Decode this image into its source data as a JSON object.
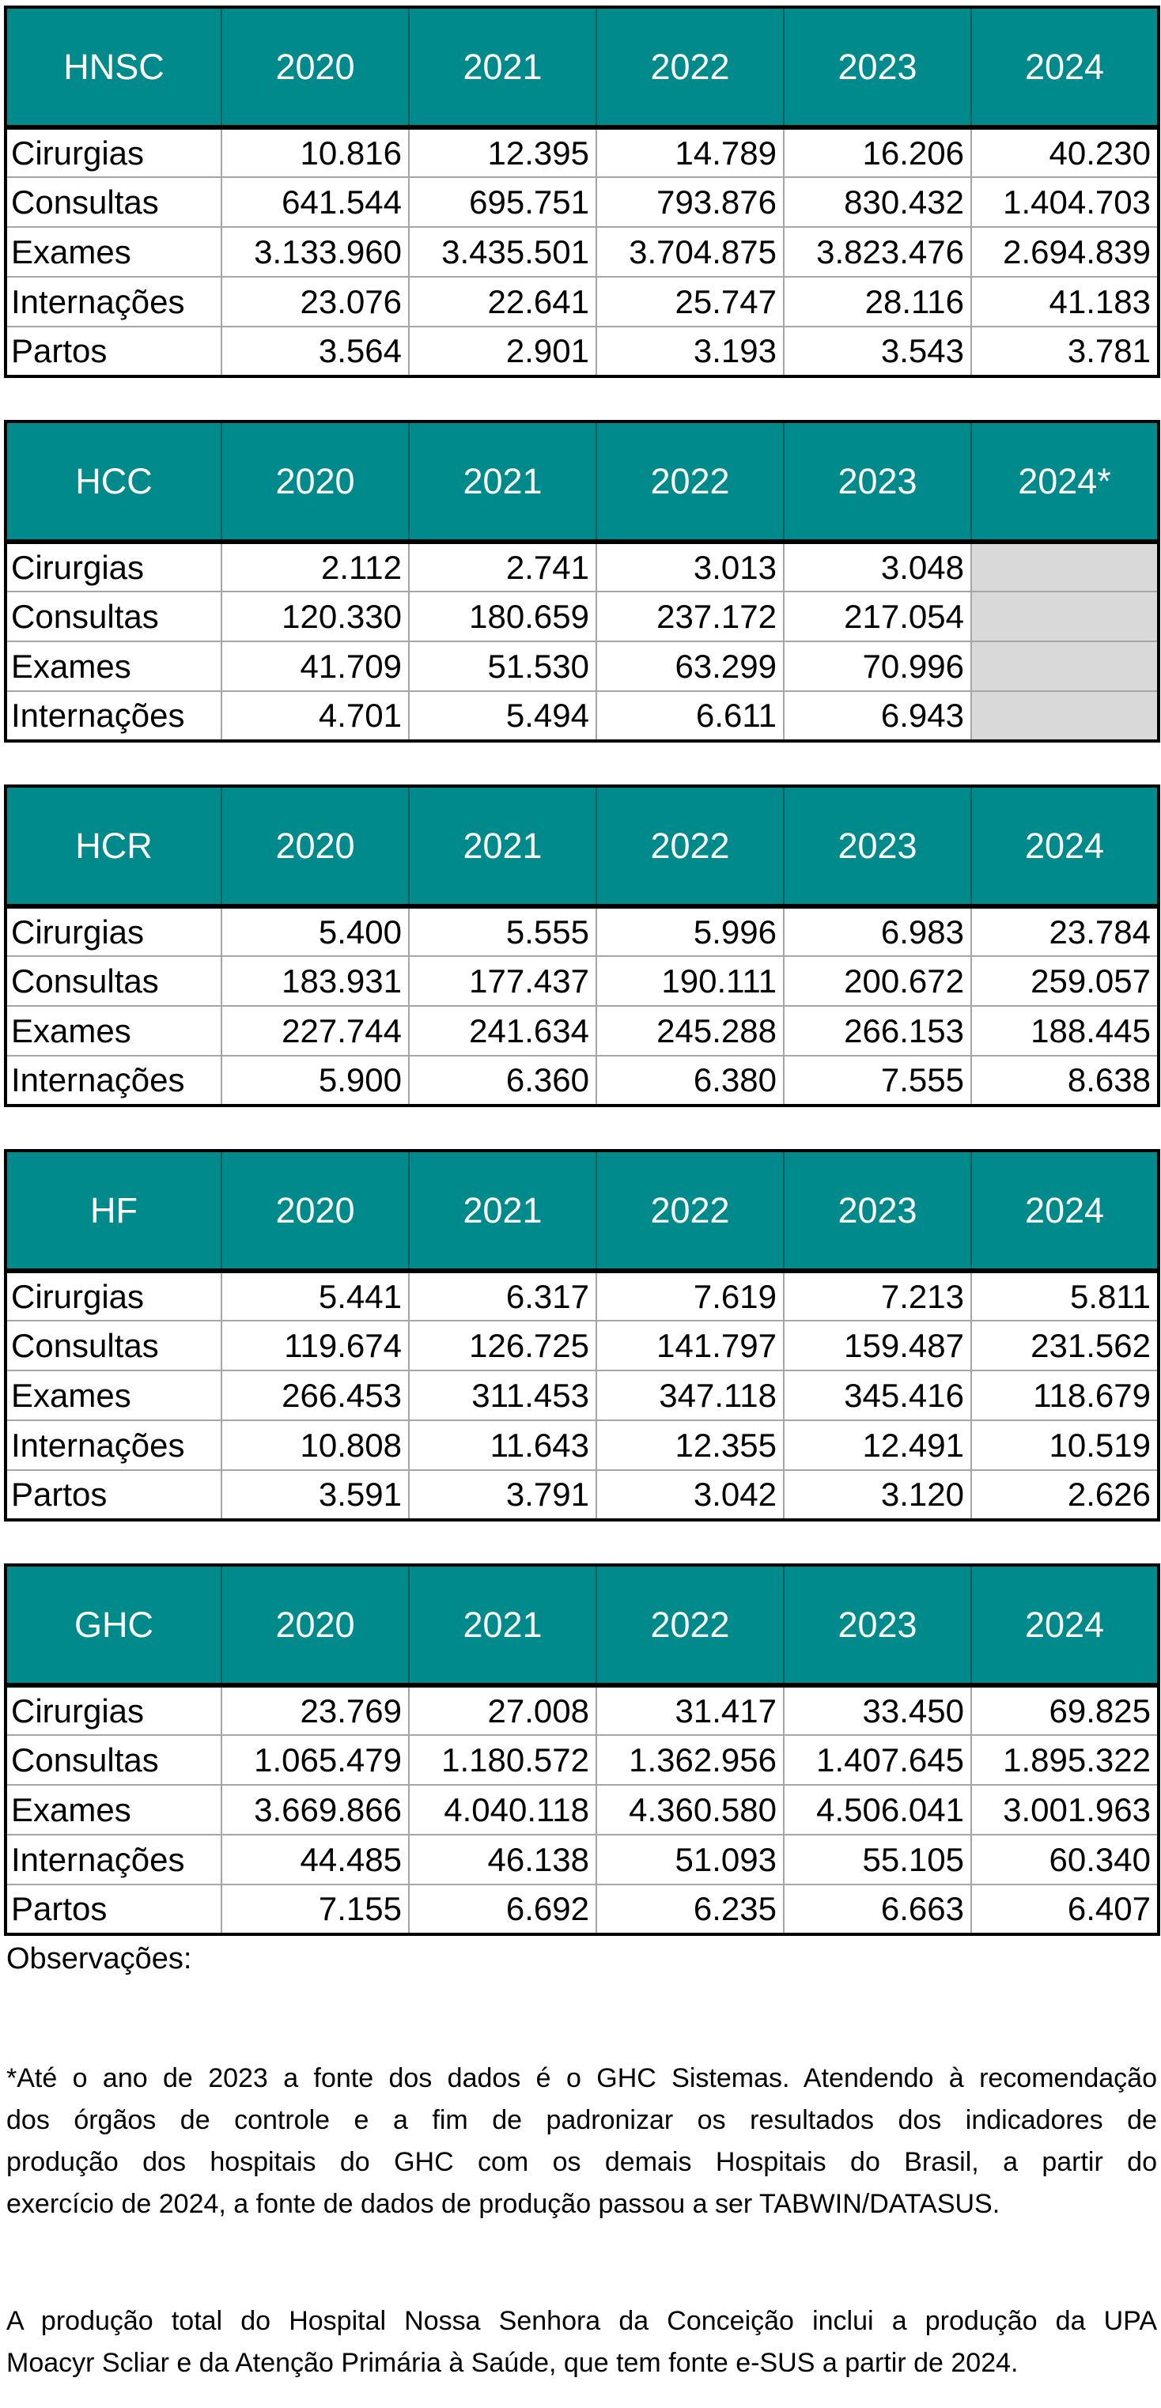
{
  "colors": {
    "header_bg": "#008a8c",
    "header_text": "#ffffff",
    "header_divider": "#065d60",
    "grid_line": "#a6a6a6",
    "outer_border": "#000000",
    "empty_cell_bg": "#d9d9d9",
    "body_text": "#000000",
    "page_bg": "#ffffff"
  },
  "tables": [
    {
      "name": "HNSC",
      "years": [
        "2020",
        "2021",
        "2022",
        "2023",
        "2024"
      ],
      "rows": [
        {
          "label": "Cirurgias",
          "values": [
            "10.816",
            "12.395",
            "14.789",
            "16.206",
            "40.230"
          ]
        },
        {
          "label": "Consultas",
          "values": [
            "641.544",
            "695.751",
            "793.876",
            "830.432",
            "1.404.703"
          ]
        },
        {
          "label": "Exames",
          "values": [
            "3.133.960",
            "3.435.501",
            "3.704.875",
            "3.823.476",
            "2.694.839"
          ]
        },
        {
          "label": "Internações",
          "values": [
            "23.076",
            "22.641",
            "25.747",
            "28.116",
            "41.183"
          ]
        },
        {
          "label": "Partos",
          "values": [
            "3.564",
            "2.901",
            "3.193",
            "3.543",
            "3.781"
          ]
        }
      ]
    },
    {
      "name": "HCC",
      "years": [
        "2020",
        "2021",
        "2022",
        "2023",
        "2024*"
      ],
      "rows": [
        {
          "label": "Cirurgias",
          "values": [
            "2.112",
            "2.741",
            "3.013",
            "3.048",
            null
          ]
        },
        {
          "label": "Consultas",
          "values": [
            "120.330",
            "180.659",
            "237.172",
            "217.054",
            null
          ]
        },
        {
          "label": "Exames",
          "values": [
            "41.709",
            "51.530",
            "63.299",
            "70.996",
            null
          ]
        },
        {
          "label": "Internações",
          "values": [
            "4.701",
            "5.494",
            "6.611",
            "6.943",
            null
          ]
        }
      ]
    },
    {
      "name": "HCR",
      "years": [
        "2020",
        "2021",
        "2022",
        "2023",
        "2024"
      ],
      "rows": [
        {
          "label": "Cirurgias",
          "values": [
            "5.400",
            "5.555",
            "5.996",
            "6.983",
            "23.784"
          ]
        },
        {
          "label": "Consultas",
          "values": [
            "183.931",
            "177.437",
            "190.111",
            "200.672",
            "259.057"
          ]
        },
        {
          "label": "Exames",
          "values": [
            "227.744",
            "241.634",
            "245.288",
            "266.153",
            "188.445"
          ]
        },
        {
          "label": "Internações",
          "values": [
            "5.900",
            "6.360",
            "6.380",
            "7.555",
            "8.638"
          ]
        }
      ]
    },
    {
      "name": "HF",
      "years": [
        "2020",
        "2021",
        "2022",
        "2023",
        "2024"
      ],
      "rows": [
        {
          "label": "Cirurgias",
          "values": [
            "5.441",
            "6.317",
            "7.619",
            "7.213",
            "5.811"
          ]
        },
        {
          "label": "Consultas",
          "values": [
            "119.674",
            "126.725",
            "141.797",
            "159.487",
            "231.562"
          ]
        },
        {
          "label": "Exames",
          "values": [
            "266.453",
            "311.453",
            "347.118",
            "345.416",
            "118.679"
          ]
        },
        {
          "label": "Internações",
          "values": [
            "10.808",
            "11.643",
            "12.355",
            "12.491",
            "10.519"
          ]
        },
        {
          "label": "Partos",
          "values": [
            "3.591",
            "3.791",
            "3.042",
            "3.120",
            "2.626"
          ]
        }
      ]
    },
    {
      "name": "GHC",
      "years": [
        "2020",
        "2021",
        "2022",
        "2023",
        "2024"
      ],
      "rows": [
        {
          "label": "Cirurgias",
          "values": [
            "23.769",
            "27.008",
            "31.417",
            "33.450",
            "69.825"
          ]
        },
        {
          "label": "Consultas",
          "values": [
            "1.065.479",
            "1.180.572",
            "1.362.956",
            "1.407.645",
            "1.895.322"
          ]
        },
        {
          "label": "Exames",
          "values": [
            "3.669.866",
            "4.040.118",
            "4.360.580",
            "4.506.041",
            "3.001.963"
          ]
        },
        {
          "label": "Internações",
          "values": [
            "44.485",
            "46.138",
            "51.093",
            "55.105",
            "60.340"
          ]
        },
        {
          "label": "Partos",
          "values": [
            "7.155",
            "6.692",
            "6.235",
            "6.663",
            "6.407"
          ]
        }
      ]
    }
  ],
  "notes": {
    "observations_label": "Observações:",
    "footnote1_lines": [
      "*Até o ano de 2023 a fonte dos dados é o GHC Sistemas. Atendendo à recomendação",
      "dos órgãos de controle e a fim de padronizar os resultados dos indicadores de",
      "produção dos hospitais do GHC com os demais Hospitais do Brasil, a partir do",
      "exercício de 2024, a fonte de dados de produção passou a ser TABWIN/DATASUS."
    ],
    "footnote2_lines": [
      "A produção total do Hospital Nossa Senhora da Conceição  inclui a produção da UPA",
      "Moacyr Scliar e da Atenção Primária à Saúde, que tem fonte e-SUS a partir de 2024."
    ]
  }
}
